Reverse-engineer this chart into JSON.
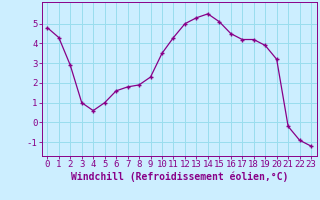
{
  "x": [
    0,
    1,
    2,
    3,
    4,
    5,
    6,
    7,
    8,
    9,
    10,
    11,
    12,
    13,
    14,
    15,
    16,
    17,
    18,
    19,
    20,
    21,
    22,
    23
  ],
  "y": [
    4.8,
    4.3,
    2.9,
    1.0,
    0.6,
    1.0,
    1.6,
    1.8,
    1.9,
    2.3,
    3.5,
    4.3,
    5.0,
    5.3,
    5.5,
    5.1,
    4.5,
    4.2,
    4.2,
    3.9,
    3.2,
    -0.2,
    -0.9,
    -1.2
  ],
  "line_color": "#880088",
  "marker": "+",
  "bg_color": "#cceeff",
  "grid_color": "#99ddee",
  "axis_color": "#880088",
  "tick_color": "#880088",
  "xlabel": "Windchill (Refroidissement éolien,°C)",
  "xlim": [
    -0.5,
    23.5
  ],
  "ylim": [
    -1.7,
    6.1
  ],
  "yticks": [
    -1,
    0,
    1,
    2,
    3,
    4,
    5
  ],
  "xticks": [
    0,
    1,
    2,
    3,
    4,
    5,
    6,
    7,
    8,
    9,
    10,
    11,
    12,
    13,
    14,
    15,
    16,
    17,
    18,
    19,
    20,
    21,
    22,
    23
  ],
  "font_size": 6.5,
  "label_font_size": 7.0
}
